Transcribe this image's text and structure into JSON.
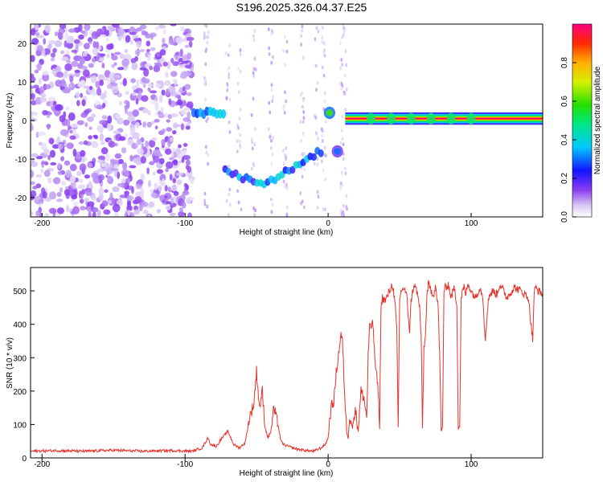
{
  "title": "S196.2025.326.04.37.E25",
  "chart_data": [
    {
      "type": "heatmap",
      "xlabel": "Height of straight line (km)",
      "ylabel": "Frequency (Hz)",
      "xlim": [
        -208,
        150
      ],
      "ylim": [
        -25,
        25
      ],
      "xticks": [
        -200,
        -100,
        0,
        100
      ],
      "yticks": [
        -20,
        -10,
        0,
        10,
        20
      ],
      "colorbar": {
        "label": "Normalized spectral amplitude",
        "range": [
          0,
          1
        ],
        "ticks": [
          "0.0",
          "0.2",
          "0.4",
          "0.6",
          "0.8"
        ]
      },
      "features": [
        {
          "name": "background noise",
          "x_range": [
            -208,
            -95
          ],
          "frequency_range": [
            -25,
            25
          ],
          "amplitude": 0.1
        },
        {
          "name": "blob",
          "x_range": [
            -95,
            -72
          ],
          "frequency": 2,
          "amplitude": 0.35
        },
        {
          "name": "arc",
          "x_range": [
            -72,
            -5
          ],
          "frequency_range": [
            -16,
            -8
          ],
          "amplitude": 0.3
        },
        {
          "name": "spot",
          "x_range": [
            -3,
            5
          ],
          "frequency": 2,
          "amplitude": 0.6
        },
        {
          "name": "spot",
          "x_range": [
            3,
            10
          ],
          "frequency": -8,
          "amplitude": 0.3
        },
        {
          "name": "steady line",
          "x_range": [
            12,
            150
          ],
          "frequency": 0.5,
          "amplitude": 1.0
        }
      ]
    },
    {
      "type": "line",
      "xlabel": "Height of straight line (km)",
      "ylabel": "SNR (10 * v/v)",
      "xlim": [
        -208,
        150
      ],
      "ylim": [
        0,
        570
      ],
      "xticks": [
        -200,
        -100,
        0,
        100
      ],
      "yticks": [
        0,
        100,
        200,
        300,
        400,
        500
      ],
      "series": [
        {
          "name": "SNR",
          "color": "#e8332a",
          "x": [
            -208,
            -190,
            -170,
            -150,
            -130,
            -110,
            -95,
            -88,
            -84,
            -82,
            -78,
            -75,
            -70,
            -66,
            -62,
            -58,
            -55,
            -52,
            -50,
            -48,
            -46,
            -44,
            -42,
            -40,
            -38,
            -35,
            -33,
            -31,
            -28,
            -25,
            -20,
            -15,
            -10,
            -5,
            -2,
            0,
            2,
            4,
            6,
            7,
            9,
            10,
            11,
            12,
            13,
            14,
            15,
            17,
            19,
            21,
            23,
            25,
            27,
            28,
            29,
            30,
            31,
            33,
            35,
            36,
            37,
            38,
            40,
            43,
            45,
            46,
            47,
            48,
            49,
            50,
            52,
            54,
            55,
            56,
            57,
            58,
            60,
            62,
            64,
            65,
            66,
            67,
            68,
            69,
            70,
            72,
            74,
            75,
            76,
            77,
            78,
            79,
            80,
            81,
            82,
            84,
            86,
            88,
            90,
            91,
            92,
            93,
            94,
            95,
            96,
            98,
            100,
            103,
            106,
            108,
            110,
            112,
            115,
            118,
            120,
            125,
            130,
            135,
            140,
            143,
            144,
            145,
            147,
            150
          ],
          "values": [
            20,
            22,
            20,
            23,
            20,
            22,
            20,
            30,
            60,
            40,
            35,
            55,
            80,
            40,
            30,
            45,
            120,
            160,
            260,
            150,
            200,
            90,
            60,
            80,
            150,
            100,
            50,
            40,
            35,
            30,
            25,
            22,
            20,
            30,
            40,
            60,
            150,
            170,
            270,
            300,
            370,
            350,
            250,
            150,
            80,
            60,
            120,
            90,
            150,
            80,
            200,
            180,
            120,
            300,
            400,
            380,
            420,
            280,
            200,
            90,
            450,
            480,
            470,
            500,
            520,
            490,
            450,
            380,
            90,
            480,
            510,
            500,
            480,
            430,
            380,
            470,
            520,
            500,
            450,
            360,
            90,
            330,
            360,
            480,
            520,
            500,
            490,
            520,
            480,
            450,
            300,
            80,
            90,
            500,
            510,
            520,
            480,
            510,
            460,
            90,
            95,
            480,
            500,
            510,
            490,
            520,
            500,
            480,
            510,
            490,
            350,
            480,
            500,
            490,
            520,
            480,
            510,
            500,
            480,
            350,
            490,
            510,
            500,
            490
          ]
        }
      ]
    }
  ]
}
